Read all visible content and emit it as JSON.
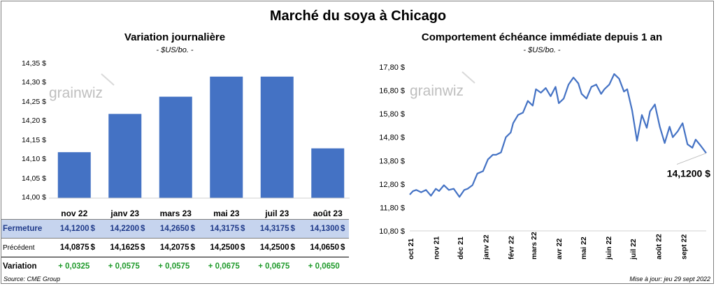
{
  "main_title": "Marché du soya à Chicago",
  "watermark": "grainwiz",
  "left_chart": {
    "title": "Variation  journalière",
    "unit": "- $US/bo. -",
    "y_ticks": [
      "14,35 $",
      "14,30 $",
      "14,25 $",
      "14,20 $",
      "14,15 $",
      "14,10 $",
      "14,05 $",
      "14,00 $"
    ]
  },
  "right_chart": {
    "title": "Comportement  échéance immédiate depuis 1 an",
    "unit": "- $US/bo. -",
    "y_ticks": [
      "17,80 $",
      "16,80 $",
      "15,80 $",
      "14,80 $",
      "13,80 $",
      "12,80 $",
      "11,80 $",
      "10,80 $"
    ],
    "x_ticks": [
      "oct 21",
      "nov 21",
      "déc 21",
      "janv 22",
      "févr 22",
      "mars 22",
      "avr 22",
      "mai 22",
      "juin 22",
      "juil 22",
      "août 22",
      "sept 22"
    ],
    "last_label": "14,1200 $"
  },
  "table": {
    "row_labels": {
      "close": "Fermeture",
      "prev": "Précédent",
      "var": "Variation"
    },
    "currency": "$",
    "close": [
      "14,1200",
      "14,2200",
      "14,2650",
      "14,3175",
      "14,3175",
      "14,1300"
    ],
    "prev": [
      "14,0875",
      "14,1625",
      "14,2075",
      "14,2500",
      "14,2500",
      "14,0650"
    ],
    "var": [
      "+ 0,0325",
      "+ 0,0575",
      "+ 0,0575",
      "+ 0,0675",
      "+ 0,0675",
      "+ 0,0650"
    ]
  },
  "footer": {
    "source": "Source: CME Group",
    "updated": "Mise à jour: jeu 29 sept 2022"
  },
  "chart_data": [
    {
      "type": "bar",
      "title": "Variation  journalière",
      "ylabel": "- $US/bo. -",
      "categories": [
        "nov 22",
        "janv 23",
        "mars 23",
        "mai 23",
        "juil 23",
        "août 23"
      ],
      "values": [
        14.12,
        14.22,
        14.265,
        14.3175,
        14.3175,
        14.13
      ],
      "ylim": [
        14.0,
        14.35
      ],
      "color": "#4472c4",
      "grid": false
    },
    {
      "type": "line",
      "title": "Comportement  échéance immédiate depuis 1 an",
      "ylabel": "- $US/bo. -",
      "x": [
        "2021-09-30",
        "2021-10-04",
        "2021-10-08",
        "2021-10-14",
        "2021-10-20",
        "2021-10-26",
        "2021-11-01",
        "2021-11-05",
        "2021-11-11",
        "2021-11-17",
        "2021-11-23",
        "2021-11-30",
        "2021-12-06",
        "2021-12-10",
        "2021-12-16",
        "2021-12-22",
        "2021-12-29",
        "2022-01-04",
        "2022-01-10",
        "2022-01-14",
        "2022-01-20",
        "2022-01-26",
        "2022-02-01",
        "2022-02-04",
        "2022-02-10",
        "2022-02-16",
        "2022-02-22",
        "2022-02-28",
        "2022-03-04",
        "2022-03-10",
        "2022-03-16",
        "2022-03-22",
        "2022-03-28",
        "2022-04-01",
        "2022-04-07",
        "2022-04-13",
        "2022-04-19",
        "2022-04-25",
        "2022-04-29",
        "2022-05-05",
        "2022-05-11",
        "2022-05-17",
        "2022-05-23",
        "2022-05-27",
        "2022-06-02",
        "2022-06-08",
        "2022-06-14",
        "2022-06-20",
        "2022-06-24",
        "2022-06-30",
        "2022-07-06",
        "2022-07-12",
        "2022-07-18",
        "2022-07-22",
        "2022-07-28",
        "2022-08-03",
        "2022-08-09",
        "2022-08-15",
        "2022-08-19",
        "2022-08-25",
        "2022-08-31",
        "2022-09-06",
        "2022-09-12",
        "2022-09-16",
        "2022-09-22",
        "2022-09-29"
      ],
      "values": [
        12.35,
        12.5,
        12.55,
        12.45,
        12.55,
        12.3,
        12.6,
        12.5,
        12.75,
        12.55,
        12.6,
        12.25,
        12.55,
        12.6,
        12.75,
        13.25,
        13.35,
        13.85,
        14.05,
        14.05,
        14.15,
        14.8,
        15.0,
        15.4,
        15.75,
        15.85,
        16.35,
        16.15,
        16.85,
        16.7,
        16.9,
        16.55,
        16.95,
        16.25,
        16.45,
        17.05,
        17.35,
        17.1,
        16.65,
        16.45,
        16.95,
        17.05,
        16.65,
        16.85,
        17.05,
        17.5,
        17.3,
        16.75,
        16.85,
        15.95,
        14.65,
        15.75,
        15.2,
        15.9,
        16.2,
        15.25,
        14.55,
        15.25,
        14.8,
        15.05,
        15.4,
        14.5,
        14.35,
        14.7,
        14.45,
        14.12
      ],
      "ylim": [
        10.8,
        17.8
      ],
      "color": "#4472c4",
      "annotations": [
        "14,1200 $"
      ],
      "grid": false
    }
  ]
}
